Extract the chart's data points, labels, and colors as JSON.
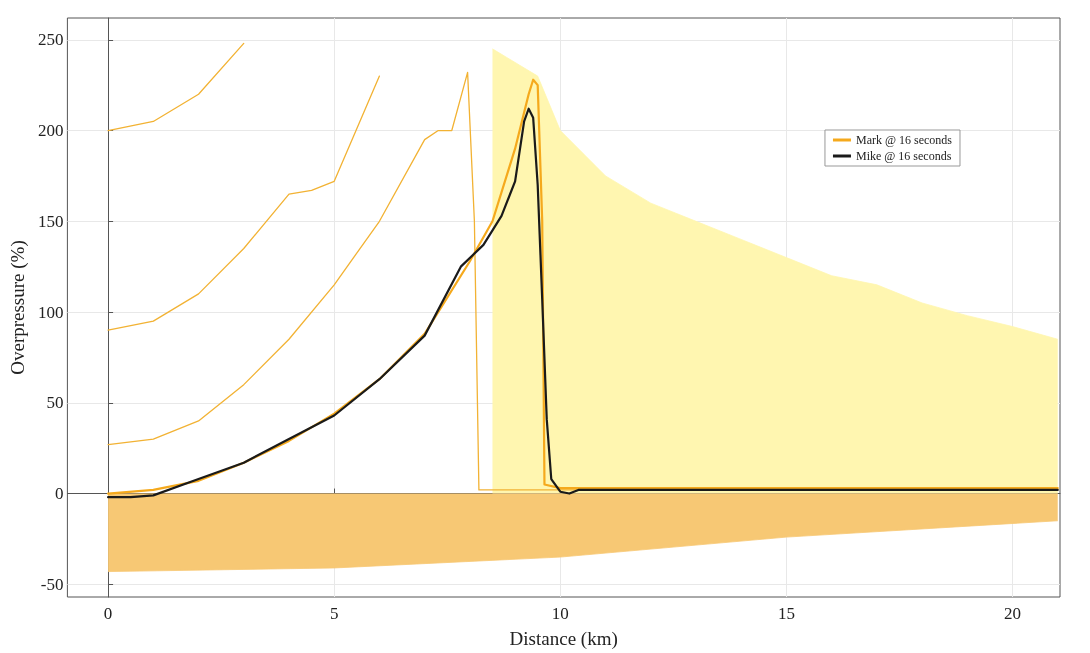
{
  "chart_data": {
    "type": "line",
    "xlabel": "Distance (km)",
    "ylabel": "Overpressure (%)",
    "xlim": [
      -0.9,
      21.05
    ],
    "ylim": [
      -57,
      262
    ],
    "xticks": [
      0,
      5,
      10,
      15,
      20
    ],
    "yticks": [
      -50,
      0,
      50,
      100,
      150,
      200,
      250
    ],
    "grid": true,
    "legend": "top right",
    "marker": "none",
    "line_style": "solid",
    "series": [
      {
        "type": "area",
        "color": "#fff6b0",
        "x": [
          8.5,
          9.5,
          10,
          11,
          12,
          13,
          14,
          15,
          16,
          17,
          18,
          19,
          20,
          21
        ],
        "values": [
          245,
          230,
          200,
          175,
          160,
          150,
          140,
          130,
          120,
          115,
          105,
          98,
          92,
          85
        ]
      },
      {
        "type": "area",
        "color": "#f7c874",
        "x": [
          0,
          5,
          10,
          15,
          21
        ],
        "values": [
          -43,
          -41,
          -35,
          -24,
          -15
        ]
      },
      {
        "type": "line",
        "color": "#f2b233",
        "x": [
          0,
          1,
          2,
          3
        ],
        "values": [
          200,
          205,
          220,
          248
        ]
      },
      {
        "type": "line",
        "color": "#f2b233",
        "x": [
          0,
          1,
          2,
          3,
          4,
          4.5,
          5,
          6
        ],
        "values": [
          90,
          95,
          110,
          135,
          165,
          167,
          172,
          230
        ]
      },
      {
        "type": "line",
        "color": "#f2b233",
        "x": [
          0,
          1,
          2,
          3,
          4,
          5,
          6,
          7,
          7.3,
          7.6,
          7.95,
          8.1,
          8.2,
          21
        ],
        "values": [
          27,
          30,
          40,
          60,
          85,
          115,
          150,
          195,
          200,
          200,
          232,
          150,
          2,
          2
        ]
      },
      {
        "name": "Mark @ 16 seconds",
        "color": "#f5a91c",
        "x": [
          0,
          1,
          2,
          3,
          4,
          5,
          6,
          7,
          8,
          8.5,
          9,
          9.3,
          9.4,
          9.5,
          9.6,
          9.65,
          10,
          21
        ],
        "values": [
          0,
          2,
          7,
          17,
          29,
          44,
          63,
          88,
          128,
          150,
          190,
          220,
          228,
          225,
          150,
          5,
          3,
          3
        ]
      },
      {
        "name": "Mike @ 16 seconds",
        "color": "#1a1a1a",
        "x": [
          0,
          0.5,
          1,
          2,
          3,
          4,
          5,
          6,
          7,
          7.8,
          8.3,
          8.7,
          9,
          9.2,
          9.3,
          9.4,
          9.5,
          9.6,
          9.7,
          9.8,
          10,
          10.2,
          10.4,
          21
        ],
        "values": [
          -2,
          -2,
          -1,
          8,
          17,
          30,
          43,
          63,
          87,
          125,
          137,
          153,
          172,
          205,
          212,
          207,
          170,
          107,
          41,
          8,
          1,
          0,
          2,
          2
        ]
      }
    ]
  }
}
